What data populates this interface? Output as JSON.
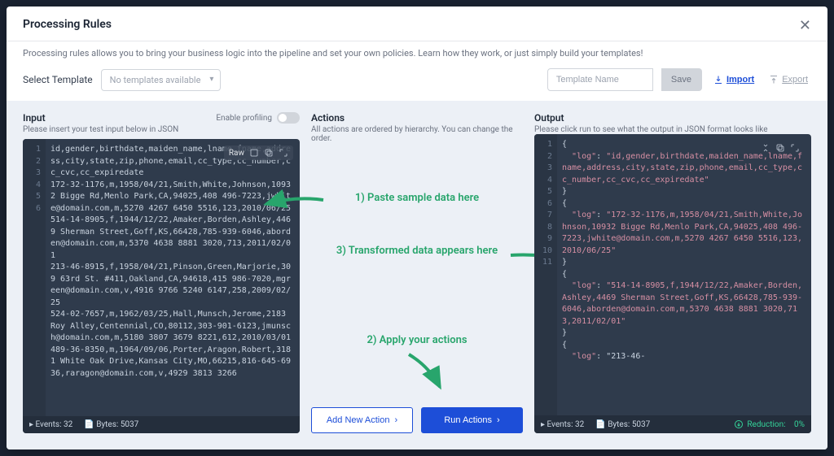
{
  "modal": {
    "title": "Processing Rules",
    "description": "Processing rules allows you to bring your business logic into the pipeline and set your own policies. Learn how they work, or just simply build your templates!"
  },
  "toolbar": {
    "select_label": "Select Template",
    "select_placeholder": "No templates available",
    "template_name_placeholder": "Template Name",
    "save_label": "Save",
    "import_label": "Import",
    "export_label": "Export"
  },
  "input": {
    "title": "Input",
    "subtitle": "Please insert your test input below in JSON",
    "profile_label": "Enable profiling",
    "raw_label": "Raw",
    "lines": [
      {
        "n": "1",
        "t": "id,gender,birthdate,maiden_name,lname,fname,address,city,state,zip,phone,email,cc_type,cc_number,cc_cvc,cc_expiredate"
      },
      {
        "n": "2",
        "t": "172-32-1176,m,1958/04/21,Smith,White,Johnson,10932 Bigge Rd,Menlo Park,CA,94025,408 496-7223,jwhite@domain.com,m,5270 4267 6450 5516,123,2010/06/25"
      },
      {
        "n": "3",
        "t": "514-14-8905,f,1944/12/22,Amaker,Borden,Ashley,4469 Sherman Street,Goff,KS,66428,785-939-6046,aborden@domain.com,m,5370 4638 8881 3020,713,2011/02/01"
      },
      {
        "n": "4",
        "t": "213-46-8915,f,1958/04/21,Pinson,Green,Marjorie,309 63rd St. #411,Oakland,CA,94618,415 986-7020,mgreen@domain.com,v,4916 9766 5240 6147,258,2009/02/25"
      },
      {
        "n": "5",
        "t": "524-02-7657,m,1962/03/25,Hall,Munsch,Jerome,2183 Roy Alley,Centennial,CO,80112,303-901-6123,jmunsch@domain.com,m,5180 3807 3679 8221,612,2010/03/01"
      },
      {
        "n": "6",
        "t": "489-36-8350,m,1964/09/06,Porter,Aragon,Robert,3181 White Oak Drive,Kansas City,MO,66215,816-645-6936,raragon@domain.com,v,4929 3813 3266"
      }
    ],
    "footer": {
      "events_label": "Events:",
      "events": "32",
      "bytes_label": "Bytes:",
      "bytes": "5037"
    }
  },
  "actions": {
    "title": "Actions",
    "subtitle": "All actions are ordered by hierarchy. You can change the order.",
    "annot1": "1) Paste sample data here",
    "annot2": "2) Apply your actions",
    "annot3": "3) Transformed data appears here",
    "add_label": "Add New Action",
    "run_label": "Run Actions"
  },
  "output": {
    "title": "Output",
    "subtitle": "Please click run to see what the output in JSON format looks like",
    "lines": [
      {
        "n": "1",
        "t": "{"
      },
      {
        "n": "2",
        "t": "  \"log\": \"id,gender,birthdate,maiden_name,lname,fname,address,city,state,zip,phone,email,cc_type,cc_number,cc_cvc,cc_expiredate\""
      },
      {
        "n": "3",
        "t": "}"
      },
      {
        "n": "4",
        "t": "{"
      },
      {
        "n": "5",
        "t": "  \"log\": \"172-32-1176,m,1958/04/21,Smith,White,Johnson,10932 Bigge Rd,Menlo Park,CA,94025,408 496-7223,jwhite@domain.com,m,5270 4267 6450 5516,123,2010/06/25\""
      },
      {
        "n": "6",
        "t": "}"
      },
      {
        "n": "7",
        "t": "{"
      },
      {
        "n": "8",
        "t": "  \"log\": \"514-14-8905,f,1944/12/22,Amaker,Borden,Ashley,4469 Sherman Street,Goff,KS,66428,785-939-6046,aborden@domain.com,m,5370 4638 8881 3020,713,2011/02/01\""
      },
      {
        "n": "9",
        "t": "}"
      },
      {
        "n": "10",
        "t": "{"
      },
      {
        "n": "11",
        "t": "  \"log\": \"213-46-"
      }
    ],
    "footer": {
      "events_label": "Events:",
      "events": "32",
      "bytes_label": "Bytes:",
      "bytes": "5037",
      "reduction_label": "Reduction:",
      "reduction": "0%"
    }
  },
  "colors": {
    "annot_green": "#28a56c",
    "primary_blue": "#1d4ed8",
    "panel_bg": "#2f3b4c",
    "panel_foot": "#242e3c"
  }
}
